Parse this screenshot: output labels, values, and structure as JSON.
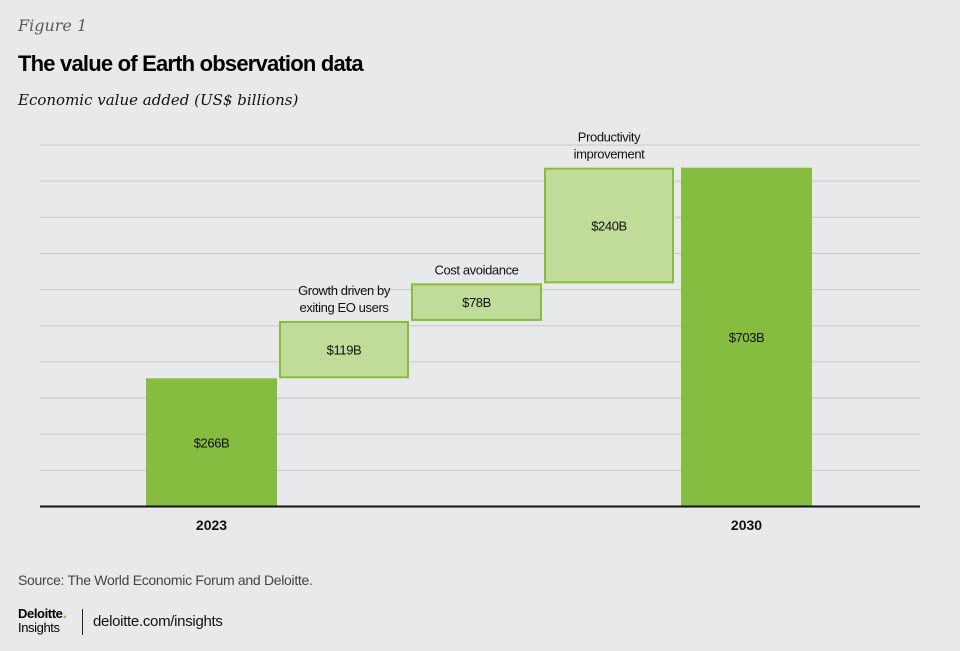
{
  "header": {
    "figure_label": "Figure 1",
    "title": "The value of Earth observation data",
    "subtitle": "Economic value added (US$ billions)"
  },
  "chart_data": {
    "type": "waterfall",
    "title": "The value of Earth observation data",
    "ylabel": "Economic value added (US$ billions)",
    "xlabel": "",
    "ylim": [
      0,
      750
    ],
    "grid": true,
    "gridline_step": 75,
    "bars": [
      {
        "label": "",
        "category": "2023",
        "kind": "total",
        "value": 266,
        "data_label": "$266B",
        "annotation": ""
      },
      {
        "label": "Growth driven by exiting EO users",
        "category": "",
        "kind": "increment",
        "value": 119,
        "data_label": "$119B",
        "annotation_lines": [
          "Growth driven by",
          "exiting EO users"
        ]
      },
      {
        "label": "Cost avoidance",
        "category": "",
        "kind": "increment",
        "value": 78,
        "data_label": "$78B",
        "annotation_lines": [
          "Cost avoidance"
        ]
      },
      {
        "label": "Productivity improvement",
        "category": "",
        "kind": "increment",
        "value": 240,
        "data_label": "$240B",
        "annotation_lines": [
          "Productivity",
          "improvement"
        ]
      },
      {
        "label": "",
        "category": "2030",
        "kind": "total",
        "value": 703,
        "data_label": "$703B",
        "annotation": ""
      }
    ],
    "colors": {
      "total": "#86bc3f",
      "increment_fill": "#c1db99",
      "increment_stroke": "#86bc3f",
      "grid": "#c6c7c9",
      "axis": "#111111"
    }
  },
  "footer": {
    "source": "Source: The World Economic Forum and Deloitte.",
    "brand": "Deloitte",
    "brand_sub": "Insights",
    "url": "deloitte.com/insights"
  }
}
